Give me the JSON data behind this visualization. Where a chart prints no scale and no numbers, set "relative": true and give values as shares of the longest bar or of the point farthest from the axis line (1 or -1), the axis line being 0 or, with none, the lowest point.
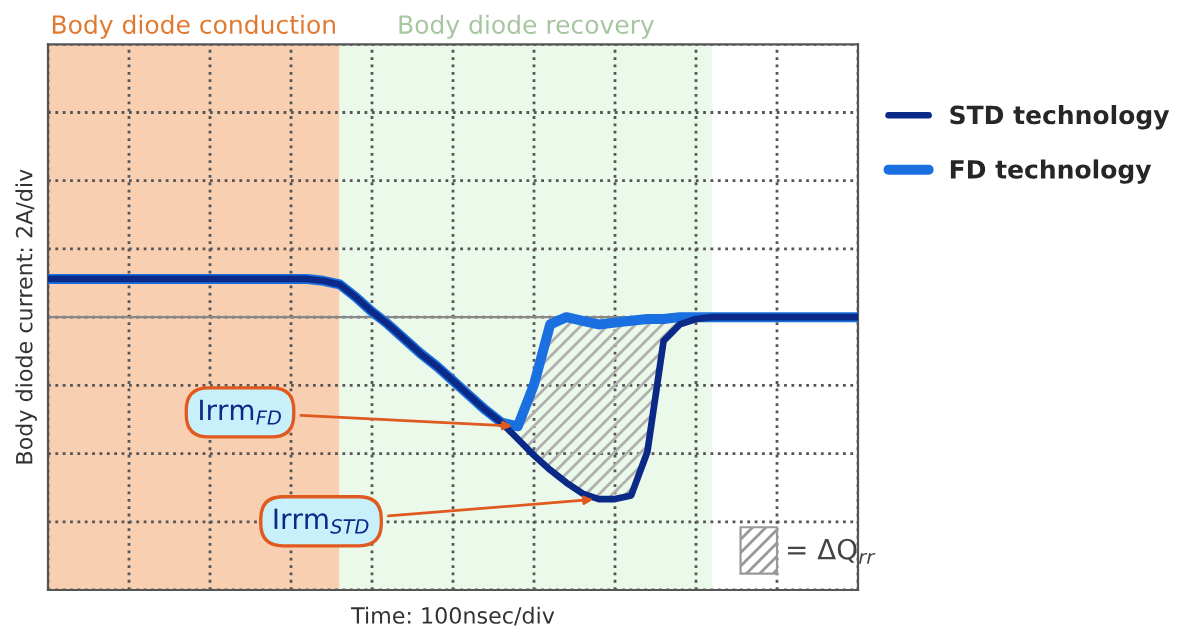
{
  "chart_data": {
    "type": "line",
    "relative": true,
    "xlabel": "Time: 100nsec/div",
    "ylabel": "Body diode current: 2A/div",
    "categories": [
      null,
      null,
      null,
      null,
      null,
      null,
      null,
      null,
      null,
      null,
      null,
      null,
      null,
      null,
      null,
      null,
      null,
      null,
      null,
      null,
      null,
      null,
      null,
      null,
      null,
      null,
      null,
      null,
      null,
      null,
      null,
      null,
      null,
      null,
      null,
      null,
      null,
      null,
      null,
      null,
      null,
      null,
      null,
      null,
      null,
      null,
      null,
      null,
      null,
      null,
      null
    ],
    "series": [
      {
        "name": "STD technology",
        "color": "#0b2a88",
        "values": [
          0.21,
          0.21,
          0.21,
          0.21,
          0.21,
          0.21,
          0.21,
          0.21,
          0.21,
          0.21,
          0.21,
          0.21,
          0.21,
          0.21,
          0.21,
          0.21,
          0.21,
          0.2,
          0.18,
          0.11,
          0.03,
          -0.04,
          -0.12,
          -0.2,
          -0.27,
          -0.35,
          -0.43,
          -0.51,
          -0.58,
          -0.67,
          -0.76,
          -0.84,
          -0.91,
          -0.97,
          -1,
          -1,
          -0.98,
          -0.74,
          -0.13,
          -0.04,
          -0.01,
          0,
          0,
          0,
          0,
          0,
          0,
          0,
          0,
          0,
          0
        ]
      },
      {
        "name": "FD technology",
        "color": "#1a70e0",
        "values": [
          0.21,
          0.21,
          0.21,
          0.21,
          0.21,
          0.21,
          0.21,
          0.21,
          0.21,
          0.21,
          0.21,
          0.21,
          0.21,
          0.21,
          0.21,
          0.21,
          0.21,
          0.2,
          0.18,
          0.11,
          0.03,
          -0.04,
          -0.12,
          -0.2,
          -0.27,
          -0.35,
          -0.43,
          -0.51,
          -0.58,
          -0.6,
          -0.37,
          -0.04,
          0,
          -0.02,
          -0.04,
          -0.03,
          -0.02,
          -0.01,
          -0.01,
          0,
          0,
          0,
          0,
          0,
          0,
          0,
          0,
          0,
          0,
          0,
          0
        ]
      }
    ],
    "tick_labels": false,
    "grid": true,
    "legend": "top right",
    "line_style": "solid",
    "marker": "none",
    "annotations": [
      "Body diode conduction",
      "Body diode recovery",
      "Irrm$_{STD}$",
      "Irrm$_{FD}$",
      "= ΔQ$_{rr}$"
    ]
  }
}
